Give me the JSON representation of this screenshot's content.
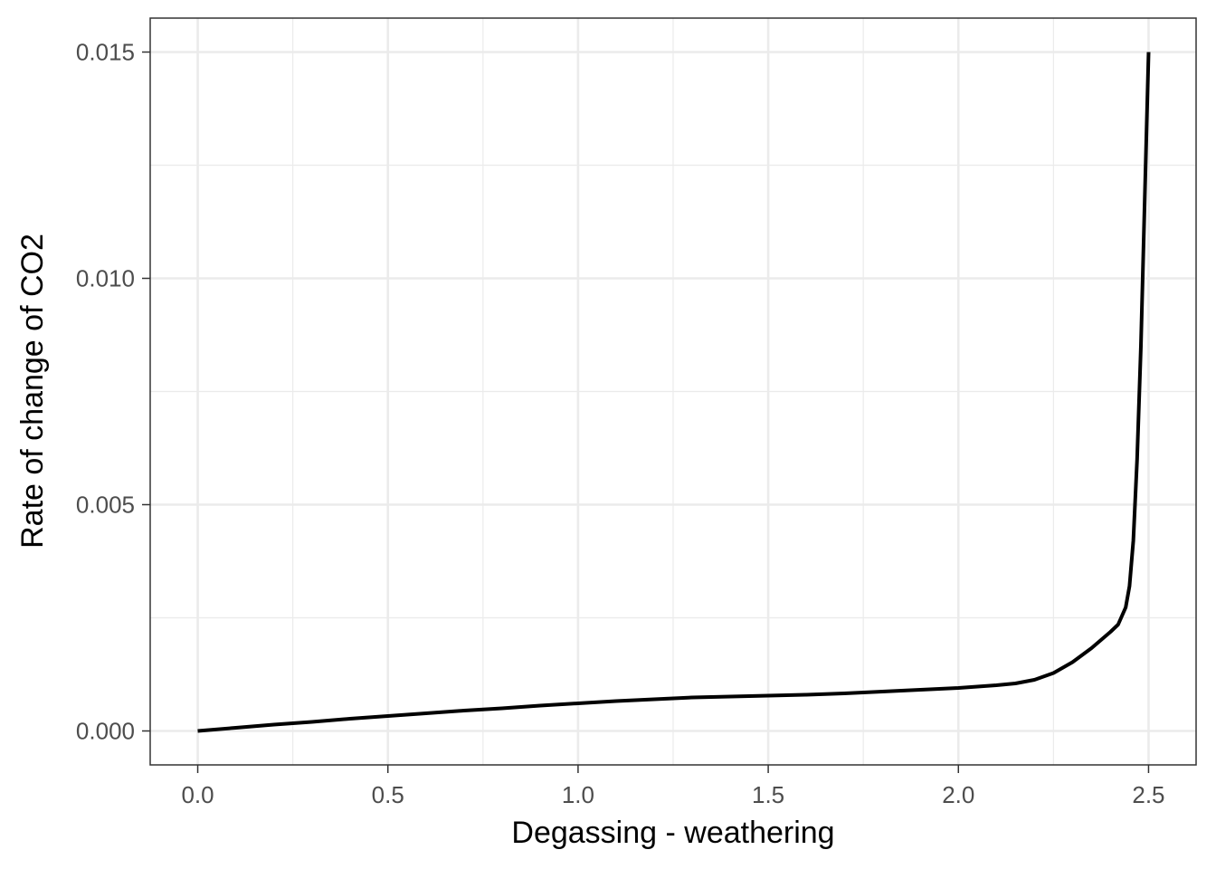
{
  "chart_data": {
    "type": "line",
    "title": "",
    "xlabel": "Degassing - weathering",
    "ylabel": "Rate of change of CO2",
    "xlim": [
      -0.125,
      2.625
    ],
    "ylim": [
      -0.00075,
      0.01575
    ],
    "x_ticks": [
      0.0,
      0.5,
      1.0,
      1.5,
      2.0,
      2.5
    ],
    "x_tick_labels": [
      "0.0",
      "0.5",
      "1.0",
      "1.5",
      "2.0",
      "2.5"
    ],
    "y_ticks": [
      0.0,
      0.005,
      0.01,
      0.015
    ],
    "y_tick_labels": [
      "0.000",
      "0.005",
      "0.010",
      "0.015"
    ],
    "grid": true,
    "legend": "none",
    "line_color": "#000000",
    "series": [
      {
        "x": [
          0.0,
          0.1,
          0.2,
          0.3,
          0.4,
          0.5,
          0.6,
          0.7,
          0.8,
          0.9,
          1.0,
          1.1,
          1.2,
          1.3,
          1.4,
          1.5,
          1.6,
          1.7,
          1.8,
          1.9,
          2.0,
          2.05,
          2.1,
          2.15,
          2.2,
          2.25,
          2.3,
          2.35,
          2.4,
          2.42,
          2.44,
          2.45,
          2.46,
          2.47,
          2.48,
          2.49,
          2.5
        ],
        "y": [
          0.0,
          7e-05,
          0.00014,
          0.0002,
          0.00027,
          0.00033,
          0.00039,
          0.00045,
          0.0005,
          0.00056,
          0.00061,
          0.00066,
          0.0007,
          0.00074,
          0.00076,
          0.00078,
          0.0008,
          0.00083,
          0.00087,
          0.00091,
          0.00095,
          0.00098,
          0.00101,
          0.00105,
          0.00113,
          0.00128,
          0.00152,
          0.00183,
          0.00219,
          0.00235,
          0.00273,
          0.0032,
          0.0042,
          0.006,
          0.0085,
          0.0118,
          0.015
        ]
      }
    ]
  }
}
